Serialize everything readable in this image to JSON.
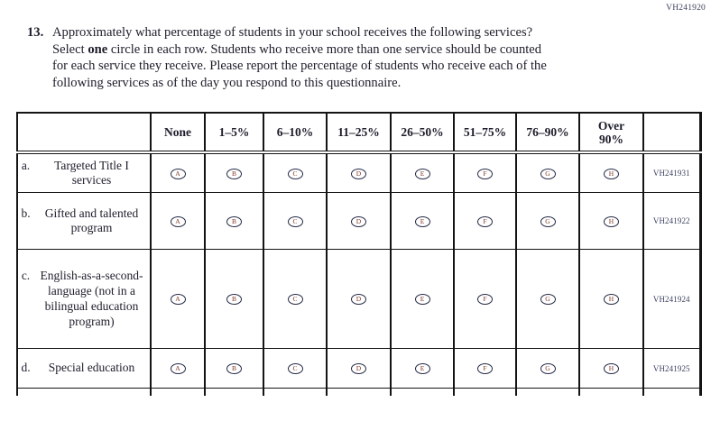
{
  "page": {
    "form_code": "VH241920"
  },
  "question": {
    "number": "13.",
    "text_before_bold": "Approximately what percentage of students in your school receives the following services? Select ",
    "bold_word": "one",
    "text_after_bold": " circle in each row. Students who receive more than one service should be counted for each service they receive. Please report the percentage of students who receive each of the following services as of the day you respond to this questionnaire."
  },
  "table": {
    "column_headers": [
      "None",
      "1–5%",
      "6–10%",
      "11–25%",
      "26–50%",
      "51–75%",
      "76–90%",
      "Over\n90%"
    ],
    "option_letters": [
      "A",
      "B",
      "C",
      "D",
      "E",
      "F",
      "G",
      "H"
    ],
    "rows": [
      {
        "letter": "a.",
        "label": "Targeted Title I services",
        "code": "VH241931"
      },
      {
        "letter": "b.",
        "label": "Gifted and talented program",
        "code": "VH241922"
      },
      {
        "letter": "c.",
        "label": "English-as-a-second-language (not in a bilingual education program)",
        "code": "VH241924"
      },
      {
        "letter": "d.",
        "label": "Special education",
        "code": "VH241925"
      }
    ]
  },
  "colors": {
    "ink": "#1d1d2b",
    "grid_line": "#141414",
    "bubble_ring": "#252a45",
    "bubble_letter": "#7d3424",
    "code_text": "#3d4260"
  }
}
